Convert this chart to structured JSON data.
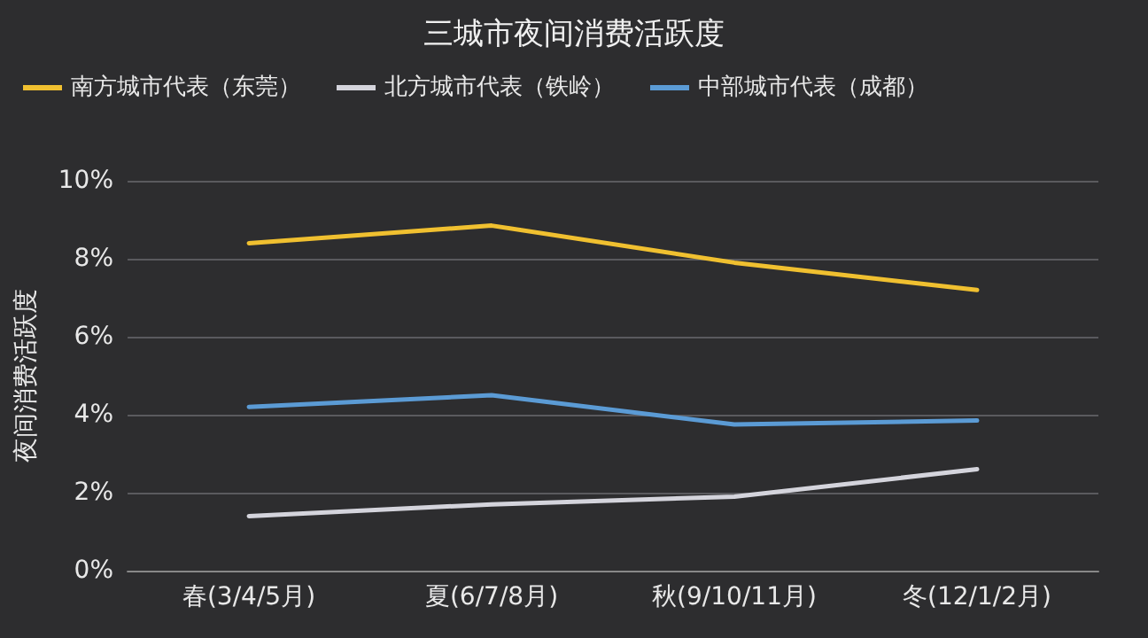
{
  "chart_data": {
    "type": "line",
    "title": "三城市夜间消费活跃度",
    "ylabel": "夜间消费活跃度",
    "categories": [
      "春(3/4/5月)",
      "夏(6/7/8月)",
      "秋(9/10/11月)",
      "冬(12/1/2月)"
    ],
    "series": [
      {
        "name": "南方城市代表（东莞）",
        "color": "#f0c030",
        "values": [
          8.4,
          8.85,
          7.9,
          7.2
        ]
      },
      {
        "name": "北方城市代表（铁岭）",
        "color": "#d4d4dc",
        "values": [
          1.4,
          1.7,
          1.9,
          2.6
        ]
      },
      {
        "name": "中部城市代表（成都）",
        "color": "#5b9bd5",
        "values": [
          4.2,
          4.5,
          3.75,
          3.85
        ]
      }
    ],
    "ylim": [
      0,
      10
    ],
    "yticks": [
      {
        "value": 0,
        "label": "0%"
      },
      {
        "value": 2,
        "label": "2%"
      },
      {
        "value": 4,
        "label": "4%"
      },
      {
        "value": 6,
        "label": "6%"
      },
      {
        "value": 8,
        "label": "8%"
      },
      {
        "value": 10,
        "label": "10%"
      }
    ],
    "grid": "y",
    "legend": "top left",
    "marker": "none",
    "line_style": "solid"
  }
}
